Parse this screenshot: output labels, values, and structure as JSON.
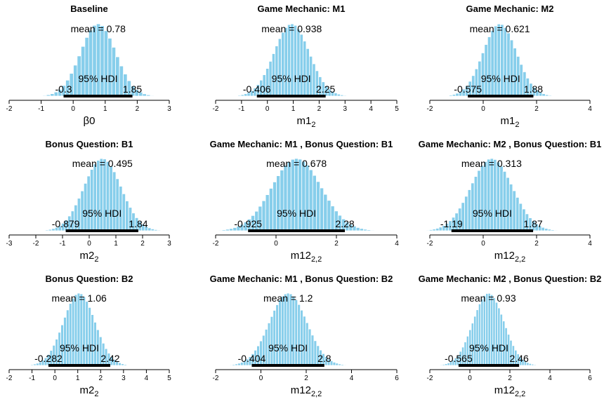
{
  "hdi_label": "95% HDI",
  "mean_prefix": "mean = ",
  "colors": {
    "bar": "#87CEEB",
    "bar_edge": "#ffffff",
    "hdi": "#000000",
    "axis": "#000000"
  },
  "chart_data": [
    {
      "type": "bar",
      "title": "Baseline",
      "xlabel": "β0",
      "xlabel_sub": "",
      "ticks": [
        -2,
        -1,
        0,
        1,
        2,
        3
      ],
      "xlim": [
        -2,
        3
      ],
      "mean": 0.78,
      "hdi_low": -0.3,
      "hdi_high": 1.85,
      "mean_text": "0.78",
      "hdi_low_text": "-0.3",
      "hdi_high_text": "1.85"
    },
    {
      "type": "bar",
      "title": "Game Mechanic: M1",
      "xlabel": "m1",
      "xlabel_sub": "2",
      "ticks": [
        -2,
        -1,
        0,
        1,
        2,
        3,
        4,
        5
      ],
      "xlim": [
        -2,
        5
      ],
      "mean": 0.938,
      "hdi_low": -0.406,
      "hdi_high": 2.25,
      "mean_text": "0.938",
      "hdi_low_text": "-0.406",
      "hdi_high_text": "2.25"
    },
    {
      "type": "bar",
      "title": "Game Mechanic: M2",
      "xlabel": "m1",
      "xlabel_sub": "2",
      "ticks": [
        -2,
        0,
        2,
        4
      ],
      "xlim": [
        -2,
        4
      ],
      "mean": 0.621,
      "hdi_low": -0.575,
      "hdi_high": 1.88,
      "mean_text": "0.621",
      "hdi_low_text": "-0.575",
      "hdi_high_text": "1.88"
    },
    {
      "type": "bar",
      "title": "Bonus Question: B1",
      "xlabel": "m2",
      "xlabel_sub": "2",
      "ticks": [
        -3,
        -2,
        -1,
        0,
        1,
        2,
        3
      ],
      "xlim": [
        -3,
        3
      ],
      "mean": 0.495,
      "hdi_low": -0.879,
      "hdi_high": 1.84,
      "mean_text": "0.495",
      "hdi_low_text": "-0.879",
      "hdi_high_text": "1.84"
    },
    {
      "type": "bar",
      "title": "Game Mechanic: M1 , Bonus Question: B1",
      "xlabel": "m12",
      "xlabel_sub": "2,2",
      "ticks": [
        -2,
        0,
        2,
        4
      ],
      "xlim": [
        -2,
        4
      ],
      "mean": 0.678,
      "hdi_low": -0.925,
      "hdi_high": 2.28,
      "mean_text": "0.678",
      "hdi_low_text": "-0.925",
      "hdi_high_text": "2.28"
    },
    {
      "type": "bar",
      "title": "Game Mechanic: M2 , Bonus Question: B1",
      "xlabel": "m12",
      "xlabel_sub": "2,2",
      "ticks": [
        -2,
        0,
        2,
        4
      ],
      "xlim": [
        -2,
        4
      ],
      "mean": 0.313,
      "hdi_low": -1.19,
      "hdi_high": 1.87,
      "mean_text": "0.313",
      "hdi_low_text": "-1.19",
      "hdi_high_text": "1.87"
    },
    {
      "type": "bar",
      "title": "Bonus Question: B2",
      "xlabel": "m2",
      "xlabel_sub": "2",
      "ticks": [
        -2,
        -1,
        0,
        1,
        2,
        3,
        4,
        5
      ],
      "xlim": [
        -2,
        5
      ],
      "mean": 1.06,
      "hdi_low": -0.282,
      "hdi_high": 2.42,
      "mean_text": "1.06",
      "hdi_low_text": "-0.282",
      "hdi_high_text": "2.42"
    },
    {
      "type": "bar",
      "title": "Game Mechanic: M1 , Bonus Question: B2",
      "xlabel": "m12",
      "xlabel_sub": "2,2",
      "ticks": [
        -2,
        0,
        2,
        4,
        6
      ],
      "xlim": [
        -2,
        6
      ],
      "mean": 1.2,
      "hdi_low": -0.404,
      "hdi_high": 2.8,
      "mean_text": "1.2",
      "hdi_low_text": "-0.404",
      "hdi_high_text": "2.8"
    },
    {
      "type": "bar",
      "title": "Game Mechanic: M2 , Bonus Question: B2",
      "xlabel": "m12",
      "xlabel_sub": "2,2",
      "ticks": [
        -2,
        0,
        2,
        4,
        6
      ],
      "xlim": [
        -2,
        6
      ],
      "mean": 0.93,
      "hdi_low": -0.565,
      "hdi_high": 2.46,
      "mean_text": "0.93",
      "hdi_low_text": "-0.565",
      "hdi_high_text": "2.46"
    }
  ]
}
